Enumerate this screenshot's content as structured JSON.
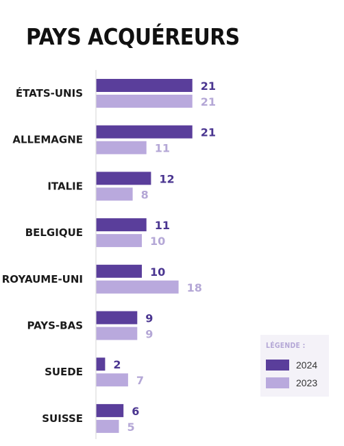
{
  "title": "PAYS ACQUÉREURS",
  "colors": {
    "y2024": "#5a3e9b",
    "y2023": "#b9a9dd",
    "label2024": "#4a3590",
    "label2023": "#b4a7d6"
  },
  "legend": {
    "title": "LÉGENDE :",
    "items": [
      "2024",
      "2023"
    ]
  },
  "chart_data": {
    "type": "bar",
    "orientation": "horizontal",
    "title": "PAYS ACQUÉREURS",
    "categories": [
      "ÉTATS-UNIS",
      "ALLEMAGNE",
      "ITALIE",
      "BELGIQUE",
      "ROYAUME-UNI",
      "PAYS-BAS",
      "SUEDE",
      "SUISSE"
    ],
    "series": [
      {
        "name": "2024",
        "values": [
          21,
          21,
          12,
          11,
          10,
          9,
          2,
          6
        ]
      },
      {
        "name": "2023",
        "values": [
          21,
          11,
          8,
          10,
          18,
          9,
          7,
          5
        ]
      }
    ],
    "xlim": [
      0,
      21
    ],
    "legend_position": "bottom-right",
    "grid": false
  }
}
